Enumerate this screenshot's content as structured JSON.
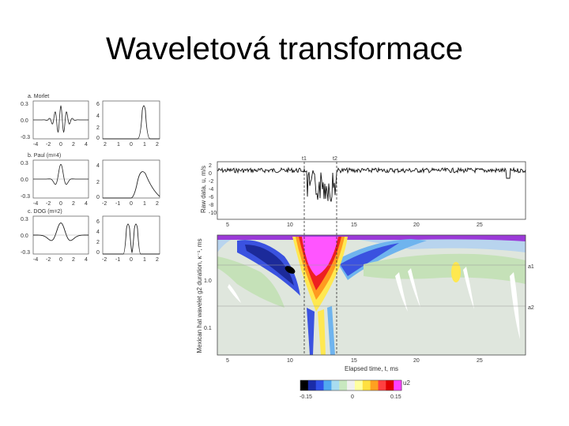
{
  "slide": {
    "title": "Waveletová transformace"
  },
  "wavelets": {
    "morlet": {
      "label": "a. Morlet",
      "x_ticks": [
        "-4",
        "-2",
        "0",
        "2",
        "4"
      ],
      "y_ticks": [
        "0.3",
        "0.0",
        "-0.3"
      ],
      "freq_ticks": [
        "2",
        "1",
        "0",
        "1",
        "2"
      ],
      "freq_y_ticks": [
        "6",
        "4",
        "2",
        "0"
      ]
    },
    "paul": {
      "label": "b. Paul (m=4)",
      "x_ticks": [
        "-4",
        "-2",
        "0",
        "2",
        "4"
      ],
      "y_ticks": [
        "0.3",
        "0.0",
        "-0.3"
      ],
      "freq_ticks": [
        "-2",
        "-1",
        "0",
        "1",
        "2"
      ],
      "freq_y_ticks": [
        "4",
        "2",
        "0"
      ]
    },
    "dog": {
      "label": "c. DOG (m=2)",
      "x_ticks": [
        "-4",
        "-2",
        "0",
        "2",
        "4"
      ],
      "y_ticks": [
        "0.3",
        "0.0",
        "-0.3"
      ],
      "freq_ticks": [
        "-2",
        "-1",
        "0",
        "1",
        "2"
      ],
      "freq_y_ticks": [
        "6",
        "4",
        "2",
        "0"
      ]
    }
  },
  "raw": {
    "ylabel": "Raw data, u, m/s",
    "y_ticks": [
      "2",
      "0",
      "-2",
      "-4",
      "-6",
      "-8",
      "-10"
    ],
    "x_ticks": [
      "5",
      "10",
      "15",
      "20",
      "25"
    ],
    "t1": "t1",
    "t2": "t2"
  },
  "scalogram": {
    "ylabel": "Mexican hat wavelet g2 duration, κ⁻¹, ms",
    "y_ticks": [
      "1.0",
      "0.1"
    ],
    "x_ticks": [
      "5",
      "10",
      "15",
      "20",
      "25"
    ],
    "xlabel": "Elapsed time, t, ms",
    "a1": "a1",
    "a2": "a2"
  },
  "colorbar": {
    "label": "u2",
    "tick_labels": [
      "-0.15",
      "0",
      "0.15"
    ],
    "colors": [
      "#000000",
      "#1a2ca8",
      "#3050e8",
      "#50a8f0",
      "#a8dcf0",
      "#c8e8c0",
      "#f0f0f0",
      "#ffffa0",
      "#ffe040",
      "#ffa020",
      "#ff4040",
      "#e00000",
      "#ff40ff"
    ]
  }
}
